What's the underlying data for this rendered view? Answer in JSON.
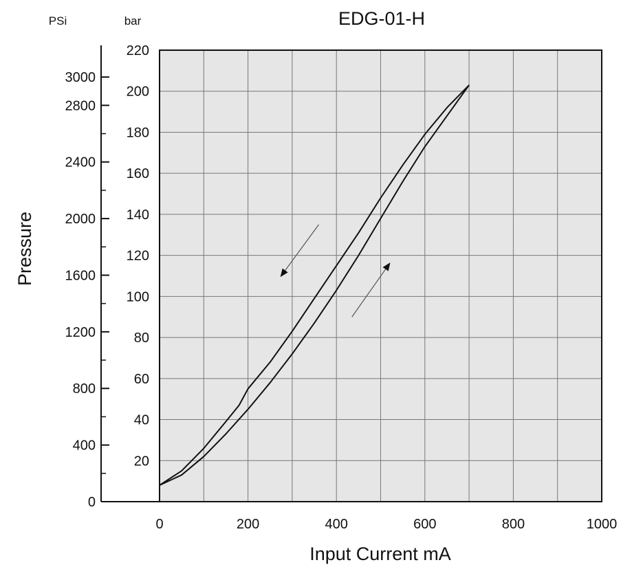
{
  "chart_data": {
    "type": "line",
    "title": "EDG-01-H",
    "xlabel": "Input Current mA",
    "ylabel": "Pressure",
    "y_unit_left": "PSi",
    "y_unit_right": "bar",
    "xlim": [
      0,
      1000
    ],
    "ylim_bar": [
      0,
      220
    ],
    "ylim_psi": [
      0,
      3190
    ],
    "x_ticks": [
      0,
      200,
      400,
      600,
      800,
      1000
    ],
    "x_tick_labels": [
      "0",
      "200",
      "400",
      "600",
      "800",
      "1000"
    ],
    "bar_ticks": [
      20,
      40,
      60,
      80,
      100,
      120,
      140,
      160,
      180,
      200,
      220
    ],
    "bar_tick_labels": [
      "20",
      "40",
      "60",
      "80",
      "100",
      "120",
      "140",
      "160",
      "180",
      "200",
      "220"
    ],
    "psi_ticks": [
      0,
      400,
      800,
      1200,
      1600,
      2000,
      2400,
      2800,
      3000
    ],
    "psi_tick_labels": [
      "0",
      "400",
      "800",
      "1200",
      "1600",
      "2000",
      "2400",
      "2800",
      "3000"
    ],
    "psi_minor_ticks": [
      200,
      600,
      1000,
      1400,
      1800,
      2200,
      2600
    ],
    "grid": true,
    "background_color": "#e6e6e6",
    "grid_color": "#777777",
    "line_color": "#111111",
    "series": [
      {
        "direction": "increasing",
        "points": [
          [
            0,
            8
          ],
          [
            50,
            13
          ],
          [
            100,
            22
          ],
          [
            150,
            33
          ],
          [
            200,
            45
          ],
          [
            250,
            58
          ],
          [
            300,
            72
          ],
          [
            350,
            87
          ],
          [
            400,
            103
          ],
          [
            450,
            120
          ],
          [
            500,
            138
          ],
          [
            550,
            156
          ],
          [
            600,
            173
          ],
          [
            650,
            188
          ],
          [
            700,
            203
          ]
        ]
      },
      {
        "direction": "decreasing",
        "points": [
          [
            700,
            203
          ],
          [
            650,
            192
          ],
          [
            600,
            179
          ],
          [
            550,
            164
          ],
          [
            500,
            148
          ],
          [
            450,
            131
          ],
          [
            400,
            115
          ],
          [
            350,
            99
          ],
          [
            300,
            83
          ],
          [
            250,
            68
          ],
          [
            200,
            55
          ],
          [
            180,
            47
          ],
          [
            150,
            39
          ],
          [
            100,
            26
          ],
          [
            50,
            15
          ],
          [
            0,
            8
          ]
        ]
      }
    ],
    "annotations": [
      {
        "type": "arrow",
        "direction": "down-left",
        "from": [
          360,
          135
        ],
        "to": [
          275,
          110
        ]
      },
      {
        "type": "arrow",
        "direction": "up-right",
        "from": [
          435,
          90
        ],
        "to": [
          520,
          116
        ]
      }
    ]
  }
}
